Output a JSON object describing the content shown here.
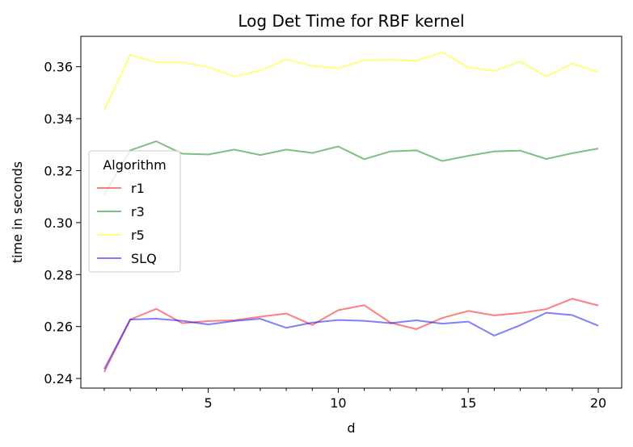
{
  "chart_data": {
    "type": "line",
    "title": "Log Det Time for RBF kernel",
    "xlabel": "d",
    "ylabel": "time in seconds",
    "xlim": [
      0.1,
      20.9
    ],
    "ylim": [
      0.2363,
      0.3717
    ],
    "xticks": [
      5,
      10,
      15,
      20
    ],
    "xtick_labels": [
      "5",
      "10",
      "15",
      "20"
    ],
    "yticks": [
      0.24,
      0.26,
      0.28,
      0.3,
      0.32,
      0.34,
      0.36
    ],
    "ytick_labels": [
      "0.24",
      "0.26",
      "0.28",
      "0.30",
      "0.32",
      "0.34",
      "0.36"
    ],
    "grid": false,
    "legend": {
      "title": "Algorithm",
      "placement": "center-left"
    },
    "x": [
      1,
      2,
      3,
      4,
      5,
      6,
      7,
      8,
      9,
      10,
      11,
      12,
      13,
      14,
      15,
      16,
      17,
      18,
      19,
      20
    ],
    "series": [
      {
        "name": "r1",
        "color": "#ff0000",
        "values": [
          0.2425,
          0.2627,
          0.2668,
          0.2613,
          0.2621,
          0.2624,
          0.2638,
          0.265,
          0.2606,
          0.2663,
          0.2682,
          0.2615,
          0.259,
          0.2633,
          0.266,
          0.2643,
          0.2652,
          0.2667,
          0.2707,
          0.2681
        ]
      },
      {
        "name": "r3",
        "color": "#008000",
        "values": [
          0.3108,
          0.3278,
          0.3313,
          0.3265,
          0.3262,
          0.3281,
          0.326,
          0.3281,
          0.3268,
          0.3293,
          0.3244,
          0.3274,
          0.3278,
          0.3237,
          0.3257,
          0.3274,
          0.3277,
          0.3245,
          0.3267,
          0.3285
        ]
      },
      {
        "name": "r5",
        "color": "#ffff00",
        "values": [
          0.3432,
          0.3645,
          0.3617,
          0.3617,
          0.3598,
          0.3563,
          0.3585,
          0.3628,
          0.3603,
          0.3594,
          0.3625,
          0.3627,
          0.3623,
          0.3655,
          0.3598,
          0.3583,
          0.362,
          0.3563,
          0.3612,
          0.358
        ]
      },
      {
        "name": "SLQ",
        "color": "#0000ff",
        "values": [
          0.2436,
          0.2627,
          0.263,
          0.2622,
          0.2608,
          0.2621,
          0.263,
          0.2595,
          0.2615,
          0.2625,
          0.2622,
          0.2613,
          0.2624,
          0.2611,
          0.2619,
          0.2565,
          0.2605,
          0.2653,
          0.2644,
          0.2603
        ]
      }
    ]
  }
}
